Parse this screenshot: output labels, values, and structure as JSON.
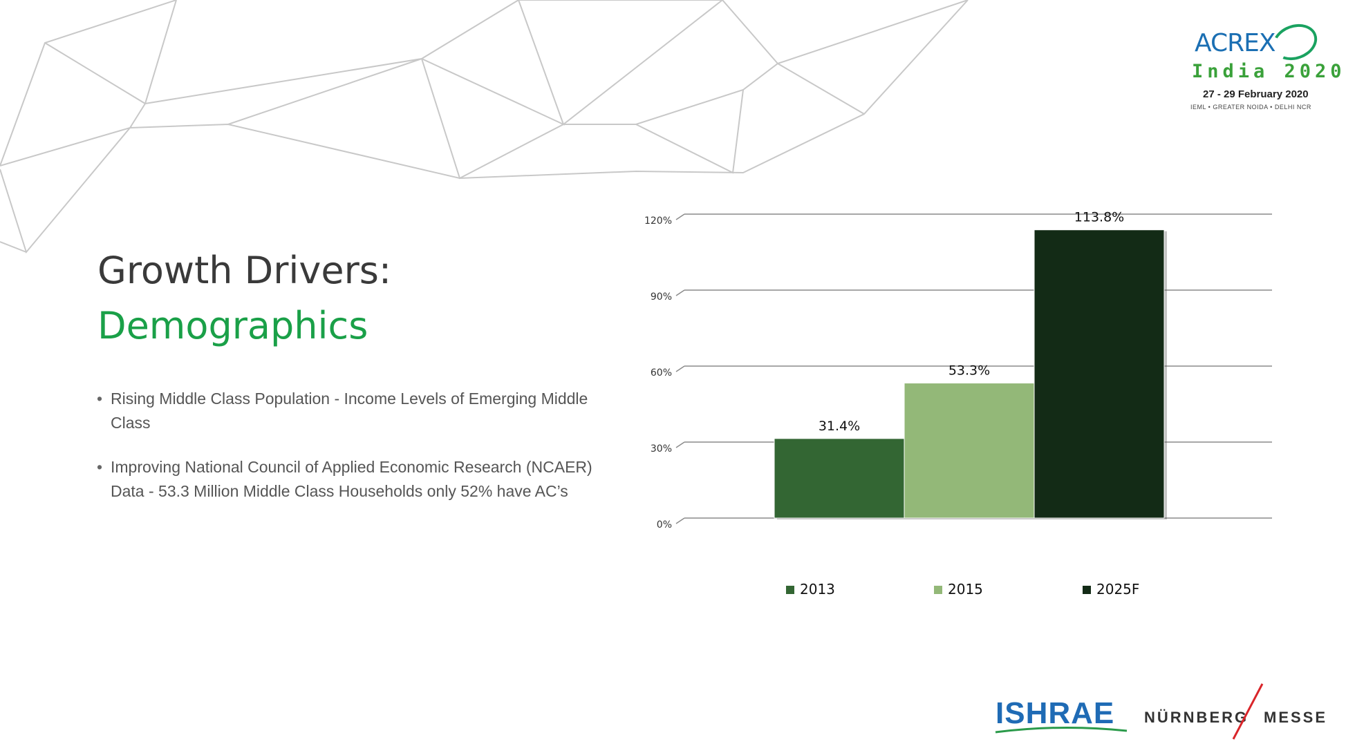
{
  "slide": {
    "title_line1": "Growth Drivers:",
    "title_line2": "Demographics",
    "title_line2_color": "#1aa048",
    "bullets": [
      "Rising Middle Class Population - Income Levels of Emerging Middle Class",
      "Improving National Council of Applied Economic       Research (NCAER) Data - 53.3 Million Middle Class Households only 52% have AC’s"
    ]
  },
  "logos": {
    "acrex_word": "ACREX",
    "acrex_india": "India 2020",
    "acrex_dates": "27 - 29 February 2020",
    "acrex_venue": "IEML • GREATER NOIDA • DELHI NCR",
    "ishrae": "ISHRAE",
    "nurnberg": "NÜRNBERG",
    "messe": "MESSE"
  },
  "chart_data": {
    "type": "bar",
    "categories": [
      "2013",
      "2015",
      "2025F"
    ],
    "values": [
      31.4,
      53.3,
      113.8
    ],
    "data_labels": [
      "31.4%",
      "53.3%",
      "113.8%"
    ],
    "colors": [
      "#336633",
      "#93b878",
      "#132b16"
    ],
    "ylim": [
      0,
      120
    ],
    "yticks": [
      0,
      30,
      60,
      90,
      120
    ],
    "ytick_labels": [
      "0%",
      "30%",
      "60%",
      "90%",
      "120%"
    ],
    "grid": true,
    "legend": "bottom",
    "legend_entries": [
      "2013",
      "2015",
      "2025F"
    ],
    "title": "",
    "xlabel": "",
    "ylabel": ""
  }
}
